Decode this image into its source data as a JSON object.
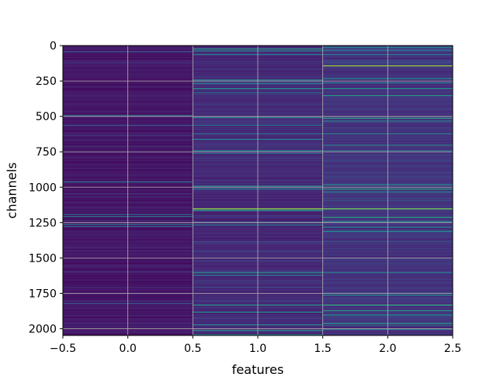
{
  "chart_data": {
    "type": "heatmap",
    "title": "",
    "xlabel": "features",
    "ylabel": "channels",
    "xlim": [
      -0.5,
      2.5
    ],
    "ylim": [
      2047.5,
      -0.5
    ],
    "x_ticks": [
      "−0.5",
      "0.0",
      "0.5",
      "1.0",
      "1.5",
      "2.0",
      "2.5"
    ],
    "x_tick_values": [
      -0.5,
      0.0,
      0.5,
      1.0,
      1.5,
      2.0,
      2.5
    ],
    "y_ticks": [
      "0",
      "250",
      "500",
      "750",
      "1000",
      "1250",
      "1500",
      "1750",
      "2000"
    ],
    "y_tick_values": [
      0,
      250,
      500,
      750,
      1000,
      1250,
      1500,
      1750,
      2000
    ],
    "n_channels": 2048,
    "n_features": 3,
    "colormap": "viridis",
    "grid": true,
    "columns": [
      {
        "feature": 0,
        "base_level": 0.06,
        "highlights": [
          {
            "channel": 40,
            "level": 0.3
          },
          {
            "channel": 490,
            "level": 0.35
          },
          {
            "channel": 560,
            "level": 0.25
          },
          {
            "channel": 960,
            "level": 0.4
          },
          {
            "channel": 1190,
            "level": 0.35
          },
          {
            "channel": 1205,
            "level": 0.4
          },
          {
            "channel": 1260,
            "level": 0.35
          },
          {
            "channel": 1275,
            "level": 0.3
          },
          {
            "channel": 1820,
            "level": 0.25
          }
        ]
      },
      {
        "feature": 1,
        "base_level": 0.12,
        "highlights": [
          {
            "channel": 20,
            "level": 0.55
          },
          {
            "channel": 35,
            "level": 0.45
          },
          {
            "channel": 60,
            "level": 0.4
          },
          {
            "channel": 240,
            "level": 0.5
          },
          {
            "channel": 265,
            "level": 0.45
          },
          {
            "channel": 300,
            "level": 0.5
          },
          {
            "channel": 330,
            "level": 0.4
          },
          {
            "channel": 505,
            "level": 0.45
          },
          {
            "channel": 560,
            "level": 0.4
          },
          {
            "channel": 620,
            "level": 0.35
          },
          {
            "channel": 660,
            "level": 0.45
          },
          {
            "channel": 740,
            "level": 0.5
          },
          {
            "channel": 760,
            "level": 0.35
          },
          {
            "channel": 990,
            "level": 0.5
          },
          {
            "channel": 1010,
            "level": 0.45
          },
          {
            "channel": 1150,
            "level": 0.85
          },
          {
            "channel": 1160,
            "level": 0.55
          },
          {
            "channel": 1245,
            "level": 0.45
          },
          {
            "channel": 1265,
            "level": 0.4
          },
          {
            "channel": 1600,
            "level": 0.55
          },
          {
            "channel": 1620,
            "level": 0.4
          },
          {
            "channel": 1830,
            "level": 0.55
          },
          {
            "channel": 1880,
            "level": 0.5
          },
          {
            "channel": 1970,
            "level": 0.45
          },
          {
            "channel": 2010,
            "level": 0.5
          },
          {
            "channel": 2040,
            "level": 0.45
          }
        ]
      },
      {
        "feature": 2,
        "base_level": 0.15,
        "highlights": [
          {
            "channel": 10,
            "level": 0.45
          },
          {
            "channel": 30,
            "level": 0.45
          },
          {
            "channel": 60,
            "level": 0.4
          },
          {
            "channel": 140,
            "level": 0.85
          },
          {
            "channel": 230,
            "level": 0.5
          },
          {
            "channel": 260,
            "level": 0.45
          },
          {
            "channel": 300,
            "level": 0.5
          },
          {
            "channel": 350,
            "level": 0.55
          },
          {
            "channel": 510,
            "level": 0.6
          },
          {
            "channel": 530,
            "level": 0.45
          },
          {
            "channel": 620,
            "level": 0.45
          },
          {
            "channel": 700,
            "level": 0.45
          },
          {
            "channel": 740,
            "level": 0.4
          },
          {
            "channel": 980,
            "level": 0.5
          },
          {
            "channel": 1010,
            "level": 0.6
          },
          {
            "channel": 1030,
            "level": 0.45
          },
          {
            "channel": 1150,
            "level": 0.8
          },
          {
            "channel": 1210,
            "level": 0.6
          },
          {
            "channel": 1240,
            "level": 0.5
          },
          {
            "channel": 1280,
            "level": 0.45
          },
          {
            "channel": 1310,
            "level": 0.5
          },
          {
            "channel": 1600,
            "level": 0.45
          },
          {
            "channel": 1760,
            "level": 0.5
          },
          {
            "channel": 1830,
            "level": 0.65
          },
          {
            "channel": 1870,
            "level": 0.55
          },
          {
            "channel": 1900,
            "level": 0.5
          },
          {
            "channel": 1960,
            "level": 0.55
          },
          {
            "channel": 2000,
            "level": 0.5
          }
        ]
      }
    ]
  }
}
